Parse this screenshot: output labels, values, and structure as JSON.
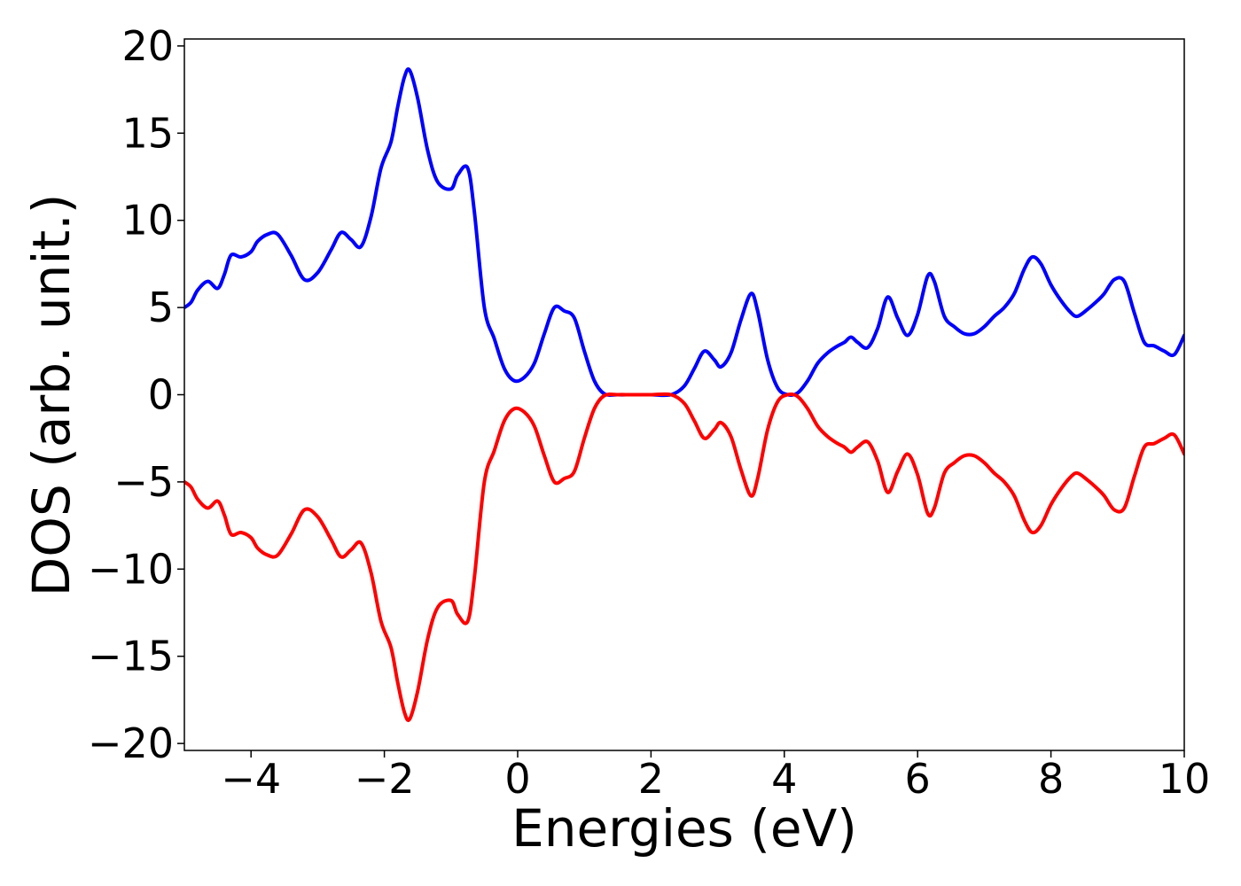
{
  "chart_data": {
    "type": "line",
    "title": "",
    "xlabel": "Energies (eV)",
    "ylabel": "DOS (arb. unit.)",
    "xlim": [
      -5,
      10
    ],
    "ylim": [
      -20.4,
      20.4
    ],
    "grid": false,
    "x_ticks": [
      -4,
      -2,
      0,
      2,
      4,
      6,
      8,
      10
    ],
    "x_tick_labels": [
      "−4",
      "−2",
      "0",
      "2",
      "4",
      "6",
      "8",
      "10"
    ],
    "y_ticks": [
      -20,
      -15,
      -10,
      -5,
      0,
      5,
      10,
      15,
      20
    ],
    "y_tick_labels": [
      "−20",
      "−15",
      "−10",
      "−5",
      "0",
      "5",
      "10",
      "15",
      "20"
    ],
    "series": [
      {
        "color": "#0000ff",
        "x": [
          -5.0,
          -4.9,
          -4.8,
          -4.65,
          -4.5,
          -4.4,
          -4.3,
          -4.15,
          -4.0,
          -3.9,
          -3.75,
          -3.6,
          -3.4,
          -3.2,
          -3.0,
          -2.8,
          -2.65,
          -2.5,
          -2.35,
          -2.2,
          -2.05,
          -1.9,
          -1.8,
          -1.7,
          -1.62,
          -1.5,
          -1.35,
          -1.2,
          -1.0,
          -0.9,
          -0.75,
          -0.65,
          -0.5,
          -0.35,
          -0.2,
          -0.05,
          0.1,
          0.25,
          0.4,
          0.55,
          0.7,
          0.85,
          1.0,
          1.15,
          1.3,
          1.5,
          1.7,
          2.0,
          2.3,
          2.5,
          2.65,
          2.8,
          2.95,
          3.05,
          3.2,
          3.35,
          3.5,
          3.6,
          3.75,
          3.9,
          4.05,
          4.2,
          4.35,
          4.5,
          4.65,
          4.8,
          4.9,
          5.0,
          5.1,
          5.25,
          5.4,
          5.55,
          5.7,
          5.85,
          6.0,
          6.15,
          6.25,
          6.4,
          6.55,
          6.7,
          6.85,
          7.0,
          7.15,
          7.3,
          7.45,
          7.6,
          7.72,
          7.85,
          8.0,
          8.15,
          8.3,
          8.4,
          8.55,
          8.7,
          8.8,
          8.95,
          9.1,
          9.25,
          9.4,
          9.55,
          9.7,
          9.85,
          10.0
        ],
        "y": [
          5.0,
          5.3,
          6.0,
          6.5,
          6.1,
          6.9,
          8.0,
          7.9,
          8.2,
          8.8,
          9.2,
          9.2,
          8.0,
          6.6,
          7.0,
          8.3,
          9.3,
          8.9,
          8.5,
          10.2,
          13.0,
          14.5,
          16.5,
          18.2,
          18.6,
          17.0,
          14.0,
          12.2,
          11.8,
          12.6,
          13.0,
          10.5,
          5.0,
          3.2,
          1.5,
          0.8,
          1.0,
          1.8,
          3.5,
          5.0,
          4.8,
          4.4,
          2.5,
          0.8,
          0.05,
          0.0,
          0.0,
          0.0,
          0.0,
          0.5,
          1.5,
          2.5,
          2.0,
          1.6,
          2.4,
          4.3,
          5.8,
          4.8,
          2.0,
          0.4,
          0.0,
          0.1,
          0.8,
          1.8,
          2.4,
          2.8,
          3.0,
          3.3,
          3.0,
          2.7,
          3.8,
          5.6,
          4.4,
          3.4,
          4.6,
          6.8,
          6.5,
          4.5,
          3.9,
          3.5,
          3.5,
          3.9,
          4.5,
          5.0,
          5.8,
          7.2,
          7.9,
          7.5,
          6.3,
          5.4,
          4.7,
          4.5,
          4.9,
          5.4,
          5.8,
          6.6,
          6.5,
          4.7,
          3.0,
          2.8,
          2.5,
          2.3,
          3.4
        ]
      },
      {
        "color": "#ff0000",
        "x": [
          -5.0,
          -4.9,
          -4.8,
          -4.65,
          -4.5,
          -4.4,
          -4.3,
          -4.15,
          -4.0,
          -3.9,
          -3.75,
          -3.6,
          -3.4,
          -3.2,
          -3.0,
          -2.8,
          -2.65,
          -2.5,
          -2.35,
          -2.2,
          -2.05,
          -1.9,
          -1.8,
          -1.7,
          -1.62,
          -1.5,
          -1.35,
          -1.2,
          -1.0,
          -0.9,
          -0.75,
          -0.65,
          -0.5,
          -0.35,
          -0.2,
          -0.05,
          0.1,
          0.25,
          0.4,
          0.55,
          0.7,
          0.85,
          1.0,
          1.15,
          1.3,
          1.5,
          1.7,
          2.0,
          2.3,
          2.5,
          2.65,
          2.8,
          2.95,
          3.05,
          3.2,
          3.35,
          3.5,
          3.6,
          3.75,
          3.9,
          4.05,
          4.2,
          4.35,
          4.5,
          4.65,
          4.8,
          4.9,
          5.0,
          5.1,
          5.25,
          5.4,
          5.55,
          5.7,
          5.85,
          6.0,
          6.15,
          6.25,
          6.4,
          6.55,
          6.7,
          6.85,
          7.0,
          7.15,
          7.3,
          7.45,
          7.6,
          7.72,
          7.85,
          8.0,
          8.15,
          8.3,
          8.4,
          8.55,
          8.7,
          8.8,
          8.95,
          9.1,
          9.25,
          9.4,
          9.55,
          9.7,
          9.85,
          10.0
        ],
        "y": [
          -5.0,
          -5.3,
          -6.0,
          -6.5,
          -6.1,
          -6.9,
          -8.0,
          -7.9,
          -8.2,
          -8.8,
          -9.2,
          -9.2,
          -8.0,
          -6.6,
          -7.0,
          -8.3,
          -9.3,
          -8.9,
          -8.5,
          -10.2,
          -13.0,
          -14.5,
          -16.5,
          -18.2,
          -18.6,
          -17.0,
          -14.0,
          -12.2,
          -11.8,
          -12.6,
          -13.0,
          -10.5,
          -5.0,
          -3.2,
          -1.5,
          -0.8,
          -1.0,
          -1.8,
          -3.5,
          -5.0,
          -4.8,
          -4.4,
          -2.5,
          -0.8,
          -0.05,
          0.0,
          0.0,
          0.0,
          0.0,
          -0.5,
          -1.5,
          -2.5,
          -2.0,
          -1.6,
          -2.4,
          -4.3,
          -5.8,
          -4.8,
          -2.0,
          -0.4,
          0.0,
          -0.1,
          -0.8,
          -1.8,
          -2.4,
          -2.8,
          -3.0,
          -3.3,
          -3.0,
          -2.7,
          -3.8,
          -5.6,
          -4.4,
          -3.4,
          -4.6,
          -6.8,
          -6.5,
          -4.5,
          -3.9,
          -3.5,
          -3.5,
          -3.9,
          -4.5,
          -5.0,
          -5.8,
          -7.2,
          -7.9,
          -7.5,
          -6.3,
          -5.4,
          -4.7,
          -4.5,
          -4.9,
          -5.4,
          -5.8,
          -6.6,
          -6.5,
          -4.7,
          -3.0,
          -2.8,
          -2.5,
          -2.3,
          -3.4
        ]
      }
    ]
  }
}
